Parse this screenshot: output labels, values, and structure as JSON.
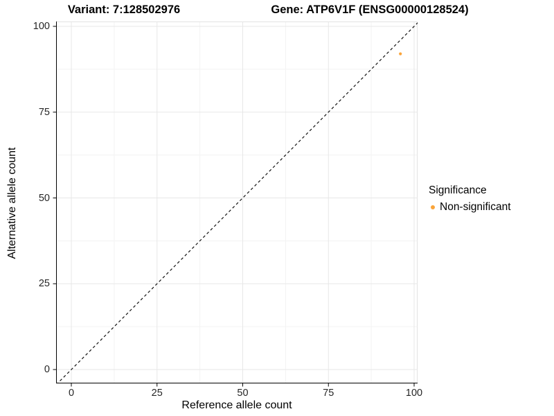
{
  "figure": {
    "title_left": "Variant: 7:128502976",
    "title_right": "Gene: ATP6V1F (ENSG00000128524)"
  },
  "x_axis": {
    "label": "Reference allele count"
  },
  "y_axis": {
    "label": "Alternative allele count"
  },
  "legend": {
    "title": "Significance",
    "items": [
      {
        "label": "Non-significant",
        "color": "#FAA43A"
      }
    ]
  },
  "colors": {
    "point": "#FAA43A",
    "grid_major": "#e7e7e7",
    "grid_minor": "#f3f3f3",
    "panel_border": "#e3e3e3",
    "axis_line": "#000000",
    "reference_line": "#111111",
    "tick_text": "#262626"
  },
  "chart_data": {
    "type": "scatter",
    "title": "Variant: 7:128502976 | Gene: ATP6V1F (ENSG00000128524)",
    "xlabel": "Reference allele count",
    "ylabel": "Alternative allele count",
    "xlim": [
      -4.4,
      101.4
    ],
    "ylim": [
      -4.1,
      101.4
    ],
    "x_ticks": [
      0,
      25,
      50,
      75,
      100
    ],
    "y_ticks": [
      0,
      25,
      50,
      75,
      100
    ],
    "x_minor_ticks": [
      12.5,
      37.5,
      62.5,
      87.5
    ],
    "y_minor_ticks": [
      12.5,
      37.5,
      62.5,
      87.5
    ],
    "grid": true,
    "legend_position": "right",
    "reference_line": {
      "type": "identity y=x",
      "style": "dashed",
      "color": "#111111"
    },
    "series": [
      {
        "name": "Non-significant",
        "color": "#FAA43A",
        "points": [
          {
            "x": 96,
            "y": 92
          }
        ]
      }
    ]
  }
}
